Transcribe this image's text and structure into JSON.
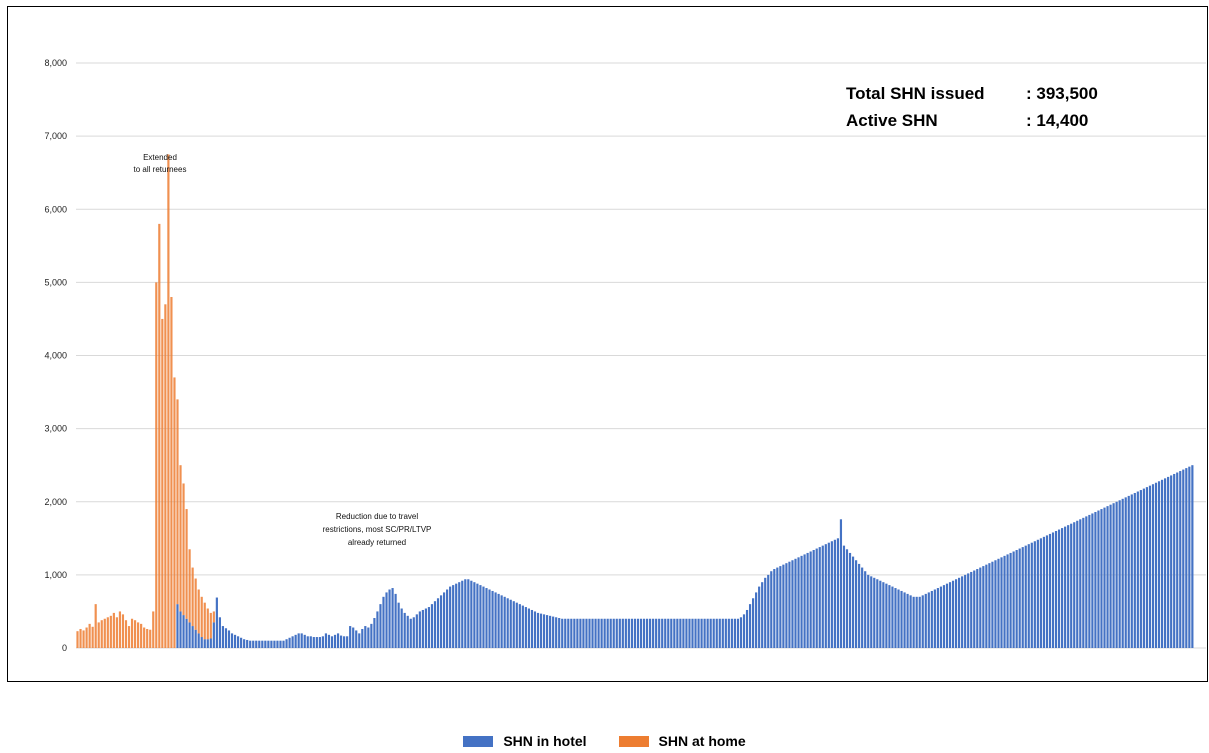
{
  "colors": {
    "hotel": "#4472C4",
    "home": "#ED7D31",
    "grid": "#D9D9D9"
  },
  "chart_data": {
    "type": "bar",
    "stacked": true,
    "title": "",
    "xlabel": "",
    "ylabel": "",
    "ylim": [
      0,
      8000
    ],
    "yticks": [
      0,
      1000,
      2000,
      3000,
      4000,
      5000,
      6000,
      7000,
      8000
    ],
    "ytick_labels": [
      "0",
      "1,000",
      "2,000",
      "3,000",
      "4,000",
      "5,000",
      "6,000",
      "7,000",
      "8,000"
    ],
    "grid": true,
    "legend_position": "bottom-center",
    "categories_note": "daily dates (tick labels too small to read)",
    "series": [
      {
        "name": "SHN in hotel",
        "color": "#4472C4",
        "values": [
          0,
          0,
          0,
          0,
          0,
          0,
          0,
          0,
          0,
          0,
          0,
          0,
          0,
          0,
          0,
          0,
          0,
          0,
          0,
          0,
          0,
          0,
          0,
          0,
          0,
          0,
          0,
          0,
          0,
          0,
          0,
          0,
          0,
          600,
          500,
          450,
          400,
          350,
          300,
          250,
          200,
          150,
          120,
          120,
          130,
          350,
          690,
          420,
          300,
          270,
          240,
          200,
          180,
          160,
          140,
          120,
          110,
          100,
          100,
          100,
          100,
          100,
          100,
          100,
          100,
          100,
          100,
          100,
          100,
          120,
          140,
          160,
          180,
          200,
          200,
          180,
          160,
          160,
          150,
          150,
          150,
          160,
          200,
          180,
          160,
          180,
          200,
          170,
          160,
          160,
          300,
          280,
          240,
          200,
          260,
          300,
          280,
          330,
          410,
          500,
          600,
          700,
          760,
          800,
          820,
          740,
          620,
          540,
          480,
          440,
          400,
          420,
          460,
          500,
          520,
          540,
          560,
          600,
          640,
          680,
          720,
          760,
          800,
          840,
          860,
          880,
          900,
          920,
          940,
          940,
          920,
          900,
          880,
          860,
          840,
          820,
          800,
          780,
          760,
          740,
          720,
          700,
          680,
          660,
          640,
          620,
          600,
          580,
          560,
          540,
          520,
          500,
          480,
          470,
          460,
          450,
          440,
          430,
          420,
          410,
          400,
          400,
          400,
          400,
          400,
          400,
          400,
          400,
          400,
          400,
          400,
          400,
          400,
          400,
          400,
          400,
          400,
          400,
          400,
          400,
          400,
          400,
          400,
          400,
          400,
          400,
          400,
          400,
          400,
          400,
          400,
          400,
          400,
          400,
          400,
          400,
          400,
          400,
          400,
          400,
          400,
          400,
          400,
          400,
          400,
          400,
          400,
          400,
          400,
          400,
          400,
          400,
          400,
          400,
          400,
          400,
          400,
          400,
          400,
          420,
          460,
          520,
          600,
          680,
          760,
          840,
          900,
          960,
          1000,
          1050,
          1080,
          1100,
          1120,
          1140,
          1160,
          1180,
          1200,
          1220,
          1240,
          1260,
          1280,
          1300,
          1320,
          1340,
          1360,
          1380,
          1400,
          1420,
          1440,
          1460,
          1480,
          1500,
          1760,
          1400,
          1350,
          1300,
          1250,
          1200,
          1150,
          1100,
          1050,
          1000,
          980,
          960,
          940,
          920,
          900,
          880,
          860,
          840,
          820,
          800,
          780,
          760,
          740,
          720,
          700,
          700,
          700,
          720,
          740,
          760,
          780,
          800,
          820,
          840,
          860,
          880,
          900,
          920,
          940,
          960,
          980,
          1000,
          1020,
          1040,
          1060,
          1080,
          1100,
          1120,
          1140,
          1160,
          1180,
          1200,
          1220,
          1240,
          1260,
          1280,
          1300,
          1320,
          1340,
          1360,
          1380,
          1400,
          1420,
          1440,
          1460,
          1480,
          1500,
          1520,
          1540,
          1560,
          1580,
          1600,
          1620,
          1640,
          1660,
          1680,
          1700,
          1720,
          1740,
          1760,
          1780,
          1800,
          1820,
          1840,
          1860,
          1880,
          1900,
          1920,
          1940,
          1960,
          1980,
          2000,
          2020,
          2040,
          2060,
          2080,
          2100,
          2120,
          2140,
          2160,
          2180,
          2200,
          2220,
          2240,
          2260,
          2280,
          2300,
          2320,
          2340,
          2360,
          2380,
          2400,
          2420,
          2440,
          2460,
          2480,
          2500
        ]
      },
      {
        "name": "SHN at home",
        "color": "#ED7D31",
        "values": [
          230,
          260,
          240,
          280,
          330,
          290,
          600,
          350,
          380,
          400,
          420,
          440,
          480,
          420,
          500,
          460,
          380,
          300,
          400,
          380,
          350,
          330,
          280,
          260,
          250,
          500,
          5000,
          5800,
          4500,
          4700,
          6750,
          4800,
          3700,
          2800,
          2000,
          1800,
          1500,
          1000,
          800,
          700,
          600,
          550,
          500,
          420,
          350,
          150,
          0,
          0,
          0,
          0,
          0,
          0,
          0,
          0,
          0,
          0,
          0,
          0,
          0,
          0,
          0,
          0,
          0,
          0,
          0,
          0,
          0,
          0,
          0,
          0,
          0,
          0,
          0,
          0,
          0,
          0,
          0,
          0,
          0,
          0,
          0,
          0,
          0,
          0,
          0,
          0,
          0,
          0,
          0,
          0,
          0,
          0,
          0,
          0,
          0,
          0,
          0,
          0,
          0,
          0,
          0,
          0,
          0,
          0,
          0,
          0,
          0,
          0,
          0,
          0,
          0,
          0,
          0,
          0,
          0,
          0,
          0,
          0,
          0,
          0,
          0,
          0,
          0,
          0,
          0,
          0,
          0,
          0,
          0,
          0,
          0,
          0,
          0,
          0,
          0,
          0,
          0,
          0,
          0,
          0,
          0,
          0,
          0,
          0,
          0,
          0,
          0,
          0,
          0,
          0,
          0,
          0,
          0,
          0,
          0,
          0,
          0,
          0,
          0,
          0,
          0,
          0,
          0,
          0,
          0,
          0,
          0,
          0,
          0,
          0,
          0,
          0,
          0,
          0,
          0,
          0,
          0,
          0,
          0,
          0,
          0,
          0,
          0,
          0,
          0,
          0,
          0,
          0,
          0,
          0,
          0,
          0,
          0,
          0,
          0,
          0,
          0,
          0,
          0,
          0,
          0,
          0,
          0,
          0,
          0,
          0,
          0,
          0,
          0,
          0,
          0,
          0,
          0,
          0,
          0,
          0,
          0,
          0,
          0,
          0,
          0,
          0,
          0,
          0,
          0,
          0,
          0,
          0,
          0,
          0,
          0,
          0,
          0,
          0,
          0,
          0,
          0,
          0,
          0,
          0,
          0,
          0,
          0,
          0,
          0,
          0,
          0,
          0,
          0,
          0,
          0,
          0,
          0,
          0,
          0,
          0,
          0,
          0,
          0,
          0,
          0,
          0,
          0,
          0,
          0,
          0,
          0,
          0,
          0,
          0,
          0,
          0,
          0,
          0,
          0,
          0,
          0,
          0,
          0,
          0,
          0,
          0,
          0,
          0,
          0,
          0,
          0,
          0,
          0,
          0,
          0,
          0,
          0,
          0,
          0,
          0,
          0,
          0,
          0,
          0,
          0,
          0,
          0,
          0,
          0,
          0,
          0,
          0,
          0,
          0,
          0,
          0,
          0,
          0,
          0,
          0,
          0,
          0,
          0,
          0,
          0,
          0,
          0,
          0,
          0,
          0,
          0,
          0,
          0,
          0,
          0,
          0,
          0,
          0,
          0,
          0,
          0,
          0,
          0,
          0,
          0,
          0,
          0,
          0,
          0,
          0,
          0,
          0,
          0,
          0,
          0,
          0,
          0,
          0,
          0,
          0,
          0,
          0,
          0,
          0,
          0,
          0,
          0,
          0,
          0,
          0,
          0,
          0,
          0,
          0,
          0,
          0,
          0
        ]
      }
    ],
    "annotations": [
      {
        "id": "extended",
        "lines": [
          "Extended",
          "to all returnees"
        ]
      },
      {
        "id": "reduction",
        "lines": [
          "Reduction due to travel",
          "restrictions, most SC/PR/LTVP",
          "already returned"
        ]
      }
    ]
  },
  "totals": {
    "issued_label": "Total SHN issued",
    "issued_value": ": 393,500",
    "active_label": "Active SHN",
    "active_value": ": 14,400"
  },
  "legend": [
    {
      "label": "SHN in hotel",
      "color": "#4472C4"
    },
    {
      "label": "SHN at home",
      "color": "#ED7D31"
    }
  ]
}
